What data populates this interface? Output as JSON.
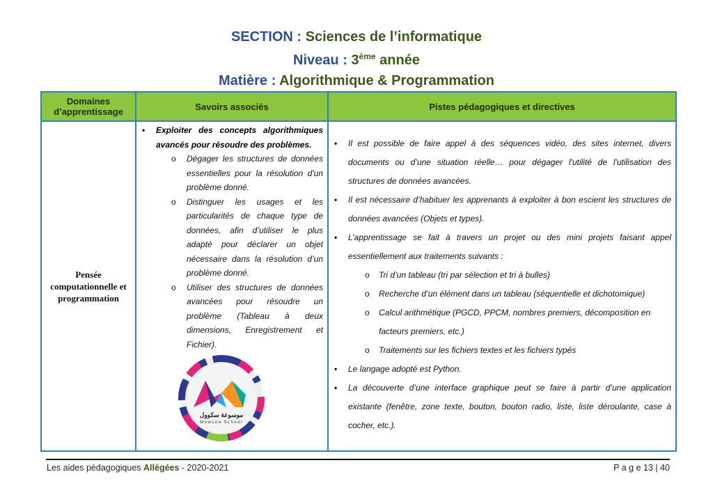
{
  "header": {
    "section_key": "SECTION :",
    "section_val": "Sciences de l’informatique",
    "niveau_key": "Niveau :",
    "niveau_num": "3",
    "niveau_sup": "ème",
    "niveau_rest": "année",
    "matiere_key": "Matière :",
    "matiere_val": "Algorithmique & Programmation"
  },
  "table": {
    "headers": [
      "Domaines d’apprentissage",
      "Savoirs associés",
      "Pistes pédagogiques et directives"
    ],
    "domain": "Pensée computationnelle et programmation",
    "savoirs": {
      "main": "Exploiter des concepts algorithmiques avancés pour résoudre des problèmes.",
      "subs": [
        "Dégager les structures de données essentielles pour la résolution d'un problème donné.",
        "Distinguer les usages et les particularités de chaque type de données, afin d’utiliser le plus adapté pour déclarer un objet nécessaire dans la résolution d’un problème donné.",
        "Utiliser des structures de données avancées pour résoudre un problème (Tableau à deux dimensions, Enregistrement et Fichier)."
      ]
    },
    "pistes": {
      "b1": "Il est possible de faire appel à des séquences vidéo, des sites internet, divers documents ou d’une situation réelle… pour dégager l'utilité de l'utilisation des structures de données avancées.",
      "b2": "Il est nécessaire d’habituer les apprenants à exploiter à bon escient les structures de données avancées (Objets et types).",
      "b3": "L’apprentissage se fait à travers un projet ou des mini projets faisant appel essentiellement aux traitements suivants :",
      "subs": [
        "Tri d’un tableau (tri par sélection et tri à bulles)",
        "Recherche d’un élément dans un tableau (séquentielle et dichotomique)",
        "Calcul arithmétique (PGCD, PPCM, nombres premiers, décomposition en facteurs premiers, etc.)",
        "Traitements sur les fichiers textes et les fichiers typés"
      ],
      "b4": "Le langage adopté est Python.",
      "b5": "La découverte d’une interface graphique peut se faire à partir d’une application existante (fenêtre, zone texte, bouton, bouton radio, liste, liste déroulante, case à cocher, etc.)."
    }
  },
  "logo": {
    "arabic": "موسوعة سكوول",
    "latin": "Mowsoa School"
  },
  "footer": {
    "left_pre": "Les aides pédagogiques ",
    "left_bold": "Allégées",
    "left_post": " - 2020-2021",
    "page": "P a g e  13 | 40"
  },
  "colors": {
    "header_green": "#8cc63f",
    "border_blue": "#2f7fc1",
    "title_blue": "#2e4f8f",
    "title_green": "#3b5a1a"
  }
}
